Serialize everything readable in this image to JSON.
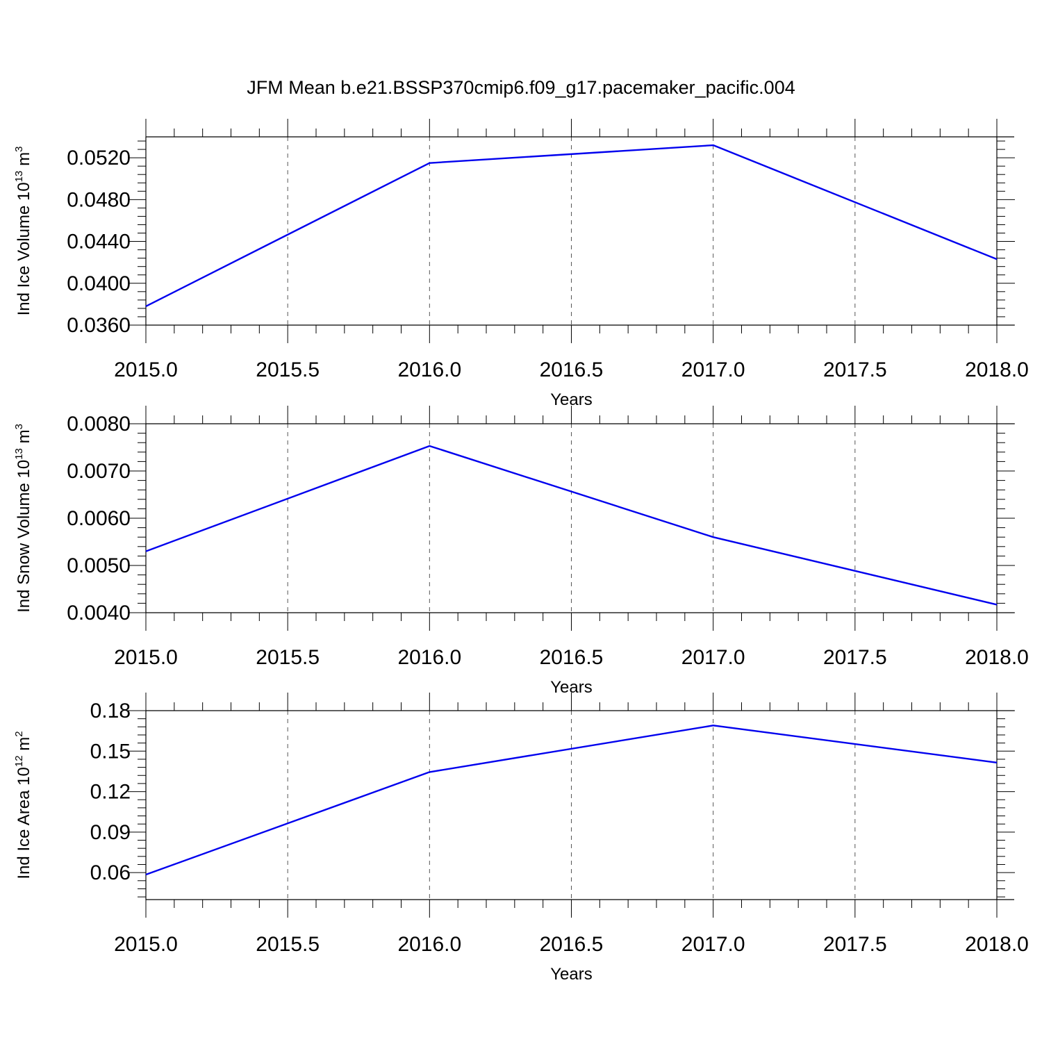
{
  "title": "JFM Mean b.e21.BSSP370cmip6.f09_g17.pacemaker_pacific.004",
  "colors": {
    "series": "#0000ee",
    "grid": "#555555",
    "axis": "#000000"
  },
  "chart_data": [
    {
      "type": "line",
      "xlabel": "Years",
      "ylabel_text": "Ind Ice Volume 10",
      "ylabel_exp": "13",
      "ylabel_unit": " m",
      "ylabel_unit_exp": "3",
      "xlim": [
        2015.0,
        2018.0
      ],
      "ylim": [
        0.036,
        0.054
      ],
      "xticks": [
        "2015.0",
        "2015.5",
        "2016.0",
        "2016.5",
        "2017.0",
        "2017.5",
        "2018.0"
      ],
      "yticks": [
        "0.0360",
        "0.0400",
        "0.0440",
        "0.0480",
        "0.0520"
      ],
      "x": [
        2015,
        2016,
        2017,
        2018
      ],
      "y": [
        0.0378,
        0.0515,
        0.0532,
        0.0423
      ],
      "grid": "vertical dashed"
    },
    {
      "type": "line",
      "xlabel": "Years",
      "ylabel_text": "Ind Snow Volume 10",
      "ylabel_exp": "13",
      "ylabel_unit": " m",
      "ylabel_unit_exp": "3",
      "xlim": [
        2015.0,
        2018.0
      ],
      "ylim": [
        0.004,
        0.008
      ],
      "xticks": [
        "2015.0",
        "2015.5",
        "2016.0",
        "2016.5",
        "2017.0",
        "2017.5",
        "2018.0"
      ],
      "yticks": [
        "0.0040",
        "0.0050",
        "0.0060",
        "0.0070",
        "0.0080"
      ],
      "x": [
        2015,
        2016,
        2017,
        2018
      ],
      "y": [
        0.0053,
        0.00753,
        0.0056,
        0.00417
      ],
      "grid": "vertical dashed"
    },
    {
      "type": "line",
      "xlabel": "Years",
      "ylabel_text": "Ind Ice Area 10",
      "ylabel_exp": "12",
      "ylabel_unit": " m",
      "ylabel_unit_exp": "2",
      "xlim": [
        2015.0,
        2018.0
      ],
      "ylim": [
        0.04,
        0.18
      ],
      "xticks": [
        "2015.0",
        "2015.5",
        "2016.0",
        "2016.5",
        "2017.0",
        "2017.5",
        "2018.0"
      ],
      "yticks": [
        "0.06",
        "0.09",
        "0.12",
        "0.15",
        "0.18"
      ],
      "x": [
        2015,
        2016,
        2017,
        2018
      ],
      "y": [
        0.0585,
        0.1345,
        0.169,
        0.1415
      ],
      "grid": "vertical dashed"
    }
  ]
}
